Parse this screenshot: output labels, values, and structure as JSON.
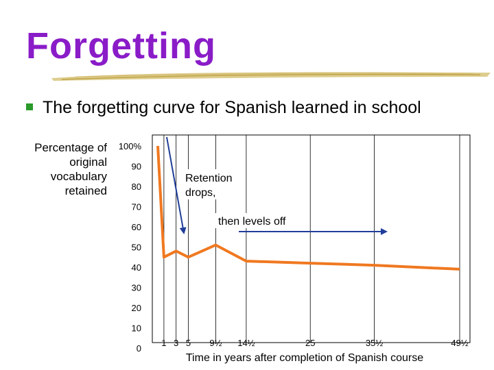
{
  "slide": {
    "title": "Forgetting",
    "bullet": "The forgetting curve for Spanish learned in school"
  },
  "colors": {
    "title": "#8a1cc8",
    "line": "#f07820",
    "arrow": "#1f3d99",
    "bullet": "#2a9a2a"
  },
  "chart_data": {
    "type": "line",
    "ylabel_lines": [
      "Percentage of",
      "original",
      "vocabulary",
      "retained"
    ],
    "xlabel": "Time in years after completion of Spanish course",
    "ylim": [
      0,
      100
    ],
    "yticks": [
      0,
      10,
      20,
      30,
      40,
      50,
      60,
      70,
      80,
      90,
      100
    ],
    "ytick_labels": [
      "0",
      "10",
      "20",
      "30",
      "40",
      "50",
      "60",
      "70",
      "80",
      "90",
      "100%"
    ],
    "xticks": [
      1,
      3,
      5,
      9.5,
      14.5,
      25,
      35.5,
      49.5
    ],
    "xtick_labels": [
      "1",
      "3",
      "5",
      "9½",
      "14½",
      "25",
      "35½",
      "49½"
    ],
    "x": [
      0,
      1,
      3,
      5,
      9.5,
      14.5,
      25,
      35.5,
      49.5
    ],
    "y": [
      100,
      45,
      48,
      45,
      51,
      43,
      42,
      41,
      39
    ],
    "annotations": [
      {
        "lines": [
          "Retention",
          "drops,"
        ]
      },
      {
        "lines": [
          "then levels off"
        ]
      }
    ]
  }
}
